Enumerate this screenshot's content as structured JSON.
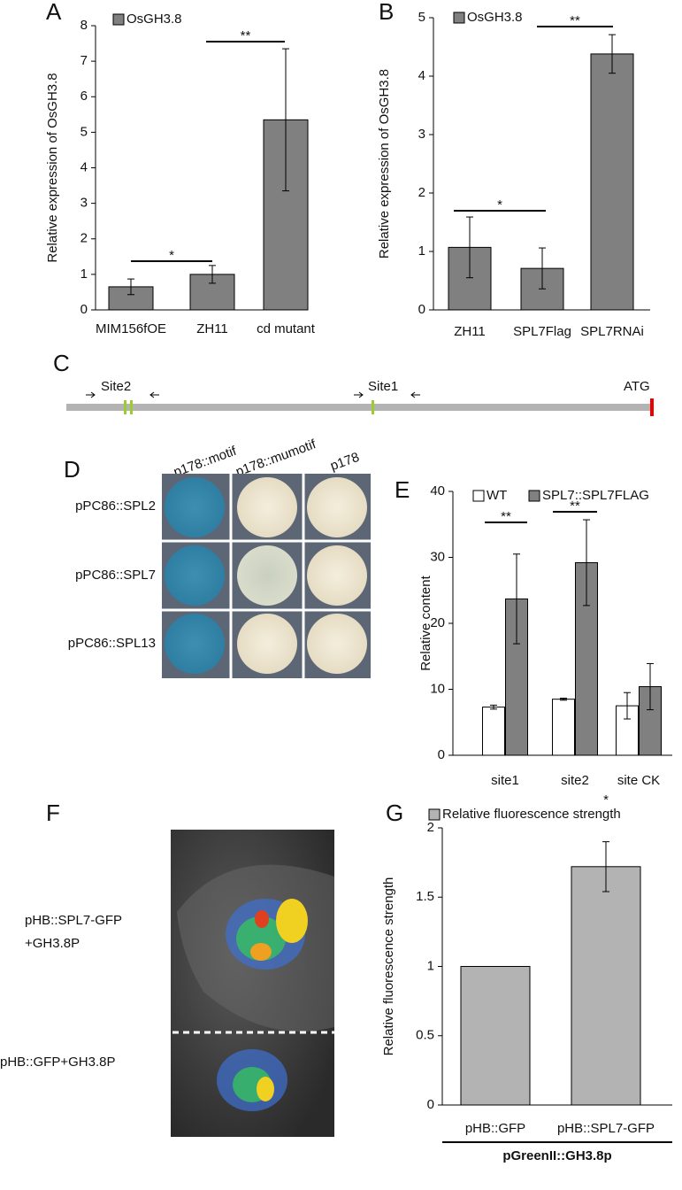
{
  "chart_data": [
    {
      "type": "bar",
      "panel": "A",
      "ylabel": "Relative expression of OsGH3.8",
      "categories": [
        "MIM156fOE",
        "ZH11",
        "cd mutant"
      ],
      "series": [
        {
          "name": "OsGH3.8",
          "color": "#808080",
          "values": [
            0.65,
            1.0,
            5.35
          ],
          "errors": [
            0.22,
            0.25,
            2.0
          ]
        }
      ],
      "ylim": [
        0,
        8
      ],
      "yticks": [
        0,
        1,
        2,
        3,
        4,
        5,
        6,
        7,
        8
      ],
      "annotations": [
        "*",
        "**"
      ]
    },
    {
      "type": "bar",
      "panel": "B",
      "ylabel": "Relative expression of OsGH3.8",
      "categories": [
        "ZH11",
        "SPL7Flag",
        "SPL7RNAi"
      ],
      "series": [
        {
          "name": "OsGH3.8",
          "color": "#808080",
          "values": [
            1.07,
            0.71,
            4.38
          ],
          "errors": [
            0.52,
            0.35,
            0.33
          ]
        }
      ],
      "ylim": [
        0,
        5
      ],
      "yticks": [
        0,
        1,
        2,
        3,
        4,
        5
      ],
      "annotations": [
        "*",
        "**"
      ]
    },
    {
      "type": "bar",
      "panel": "E",
      "ylabel": "Relative content",
      "categories": [
        "site1",
        "site2",
        "site CK"
      ],
      "series": [
        {
          "name": "WT",
          "color": "#ffffff",
          "values": [
            7.3,
            8.5,
            7.5
          ],
          "errors": [
            0.3,
            0.15,
            2.0
          ]
        },
        {
          "name": "SPL7::SPL7FLAG",
          "color": "#808080",
          "values": [
            23.7,
            29.2,
            10.4
          ],
          "errors": [
            6.8,
            6.5,
            3.5
          ]
        }
      ],
      "ylim": [
        0,
        40
      ],
      "yticks": [
        0,
        10,
        20,
        30,
        40
      ],
      "annotations": [
        "**",
        "**"
      ]
    },
    {
      "type": "bar",
      "panel": "G",
      "ylabel": "Relative fluorescence strength",
      "categories": [
        "pHB::GFP",
        "pHB::SPL7-GFP"
      ],
      "group_label": "pGreenII::GH3.8p",
      "series": [
        {
          "name": "Relative fluorescence strength",
          "color": "#b3b3b3",
          "values": [
            1,
            1.72
          ],
          "errors": [
            null,
            0.18
          ]
        }
      ],
      "ylim": [
        0,
        2
      ],
      "yticks": [
        0,
        0.5,
        1,
        1.5,
        2
      ],
      "annotations": [
        "*"
      ]
    }
  ],
  "panel_c": {
    "panel": "C",
    "sites": [
      "Site2",
      "Site1"
    ],
    "start": "ATG"
  },
  "panel_d": {
    "panel": "D",
    "columns": [
      "p178::motif",
      "p178::mumotif",
      "p178"
    ],
    "rows": [
      "pPC86::SPL2",
      "pPC86::SPL7",
      "pPC86::SPL13"
    ]
  },
  "panel_f": {
    "panel": "F",
    "labels": [
      "pHB::SPL7-GFP",
      "+GH3.8P",
      "pHB::GFP+GH3.8P"
    ]
  }
}
